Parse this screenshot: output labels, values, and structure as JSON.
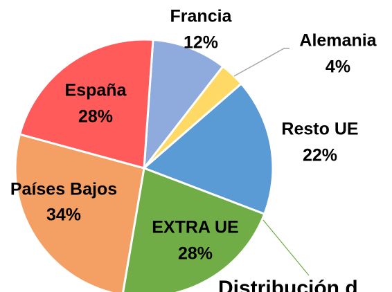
{
  "chart_data": {
    "type": "pie",
    "categories": [
      "Francia",
      "Alemania",
      "Resto UE",
      "EXTRA UE",
      "Países Bajos",
      "España"
    ],
    "values": [
      12,
      4,
      22,
      28,
      34,
      28
    ],
    "value_labels": [
      "12%",
      "4%",
      "22%",
      "28%",
      "34%",
      "28%"
    ],
    "colors": [
      "#8faadc",
      "#ffd966",
      "#5b9bd5",
      "#70ad47",
      "#f4a064",
      "#ff5b5b"
    ],
    "title": "Distribución d"
  }
}
